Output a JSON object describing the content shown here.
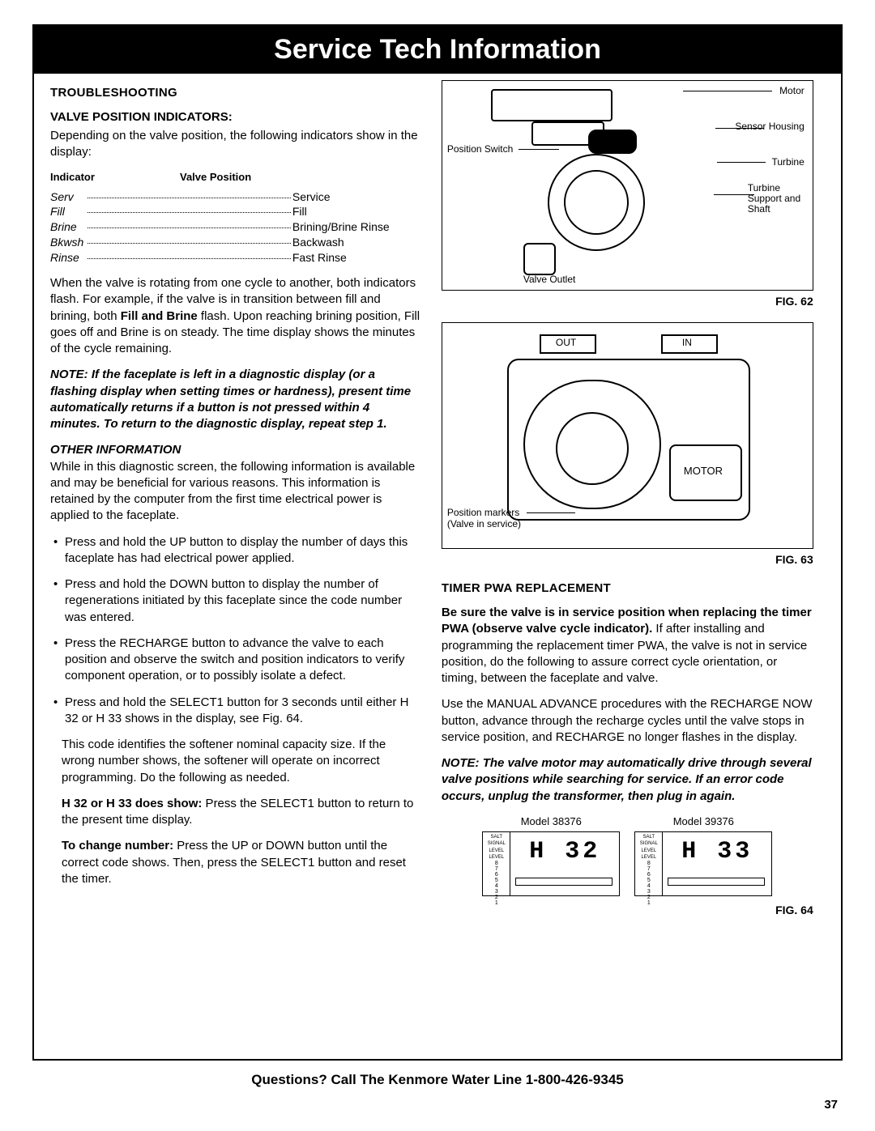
{
  "page_title": "Service Tech Information",
  "left": {
    "troubleshooting_heading": "TROUBLESHOOTING",
    "valve_pos_heading": "VALVE POSITION INDICATORS:",
    "valve_pos_intro": "Depending on the valve position, the following indicators show in the display:",
    "ind_col1": "Indicator",
    "ind_col2": "Valve Position",
    "indicators": [
      {
        "ind": "Serv",
        "pos": "Service"
      },
      {
        "ind": "Fill",
        "pos": "Fill"
      },
      {
        "ind": "Brine",
        "pos": "Brining/Brine Rinse"
      },
      {
        "ind": "Bkwsh",
        "pos": "Backwash"
      },
      {
        "ind": "Rinse",
        "pos": "Fast Rinse"
      }
    ],
    "rotating_para": "When the valve is rotating from one cycle to another, both indicators flash. For example, if the valve is in transition between fill and brining, both ",
    "rotating_bold": "Fill and Brine",
    "rotating_para2": " flash. Upon reaching brining position, Fill goes off and Brine is on steady. The time display shows the minutes of the cycle remaining.",
    "note1": "NOTE: If the faceplate is left in a diagnostic display (or a flashing display when setting times or hardness), present time automatically returns if a button is not pressed within 4 minutes. To return to the diagnostic display, repeat step 1.",
    "other_info_heading": "OTHER INFORMATION",
    "other_info_para": "While in this diagnostic screen, the following information is available and may be beneficial for various reasons. This information is retained by the computer from the first time electrical power is applied to the faceplate.",
    "bullet1": "Press and hold the UP button to display the number of days this faceplate has had electrical power applied.",
    "bullet2": "Press and hold the DOWN button to display the number of regenerations initiated by this faceplate since the code number was entered.",
    "bullet3": "Press the RECHARGE button to advance the valve to each position and observe the switch and position indicators to verify component operation, or to possibly isolate a defect.",
    "bullet4": "Press and hold the SELECT1 button for 3 seconds until either H 32 or H 33 shows in the display, see Fig. 64.",
    "bullet4_p2": "This code identifies the softener nominal capacity size. If the wrong number shows, the softener will operate on incorrect programming. Do the following as needed.",
    "bullet4_p3a": "H 32 or H 33 does show:",
    "bullet4_p3b": " Press the SELECT1 button to return to the present time display.",
    "bullet4_p4a": "To change number:",
    "bullet4_p4b": " Press the UP or DOWN button until the correct code shows. Then, press the SELECT1 button and reset the timer."
  },
  "right": {
    "fig62_labels": {
      "motor": "Motor",
      "sensor": "Sensor Housing",
      "turbine": "Turbine",
      "support": "Turbine Support and Shaft",
      "pos_switch": "Position Switch",
      "valve_outlet": "Valve Outlet"
    },
    "fig62_cap": "FIG. 62",
    "fig63_labels": {
      "out": "OUT",
      "in": "IN",
      "motor": "MOTOR",
      "pos_markers": "Position markers",
      "valve_service": "(Valve in service)"
    },
    "fig63_cap": "FIG. 63",
    "timer_heading": "TIMER PWA REPLACEMENT",
    "timer_p1a": "Be sure the valve is in service position when replacing the timer PWA (observe valve cycle indicator).",
    "timer_p1b": " If after installing and programming the replacement timer PWA, the valve is not in service position, do the following to assure correct cycle orientation, or timing, between the faceplate and valve.",
    "timer_p2": "Use the MANUAL ADVANCE procedures with the RECHARGE NOW button, advance through the recharge cycles until the valve stops in service position, and RECHARGE no longer flashes in the display.",
    "timer_note": "NOTE: The valve motor may automatically drive through several valve positions while searching for service. If an error code occurs, unplug the transformer, then plug in again.",
    "lcd": {
      "model_a": "Model 38376",
      "model_b": "Model 39376",
      "disp_a": "H 32",
      "disp_b": "H 33",
      "scale_top": "SALT  SIGNAL\nLEVEL LEVEL",
      "scale_nums": [
        "8",
        "7",
        "6",
        "5",
        "4",
        "3",
        "2",
        "1"
      ]
    },
    "fig64_cap": "FIG. 64"
  },
  "footer": "Questions? Call The Kenmore Water Line 1-800-426-9345",
  "page_number": "37"
}
